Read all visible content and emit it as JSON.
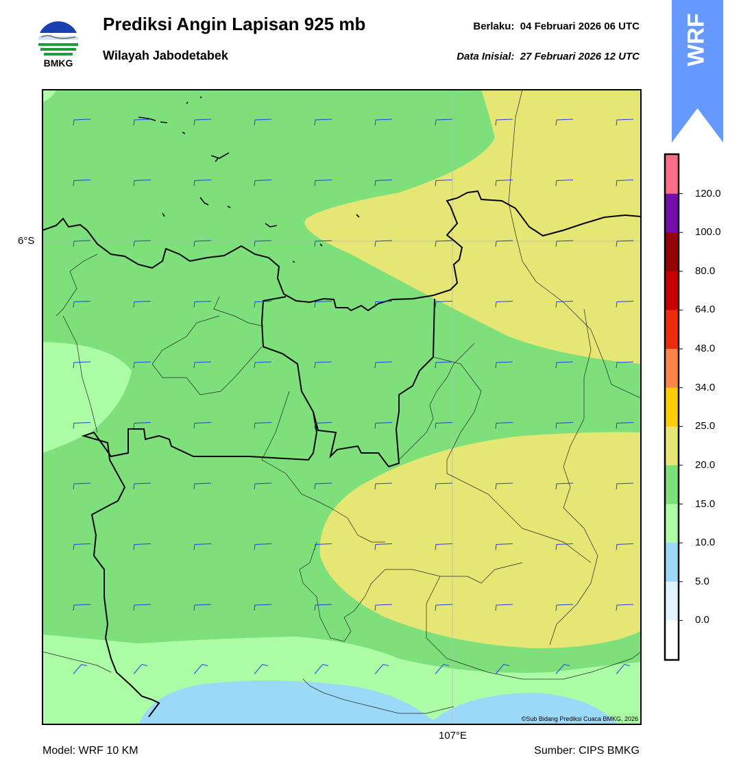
{
  "header": {
    "logo_text": "BMKG",
    "title": "Prediksi Angin Lapisan 925 mb",
    "region": "Wilayah Jabodetabek",
    "valid_label": "Berlaku:",
    "valid_time": "04 Februari 2026 06 UTC",
    "init_label": "Data Inisial:",
    "init_time": "27 Februari 2026 12 UTC"
  },
  "badge": {
    "text": "WRF",
    "color": "#6699ff"
  },
  "map": {
    "lat_label": "6°S",
    "lon_label": "107°E",
    "credit": "©Sub Bidang Prediksi Cuaca BMKG, 2026",
    "wind_barb_color": "#1f3fe6",
    "coastline_color": "#000000",
    "zone_colors": {
      "green_15_20": "#7de07b",
      "yellow_20_25": "#e5e673",
      "lightgreen_10_15": "#acfca6",
      "lightblue_5_10": "#9cd9f9"
    }
  },
  "colorbar": {
    "ticks": [
      "120.0",
      "100.0",
      "80.0",
      "64.0",
      "48.0",
      "34.0",
      "25.0",
      "20.0",
      "15.0",
      "10.0",
      "5.0",
      "0.0"
    ],
    "colors": [
      "#ff6e87",
      "#750fab",
      "#960505",
      "#c80000",
      "#ee2d0e",
      "#fc8549",
      "#ffcd05",
      "#e5e673",
      "#7de07b",
      "#acfca6",
      "#9cd9f9",
      "#dff4ff",
      "#ffffff"
    ]
  },
  "footer": {
    "model": "Model: WRF 10 KM",
    "source": "Sumber: CIPS BMKG"
  }
}
